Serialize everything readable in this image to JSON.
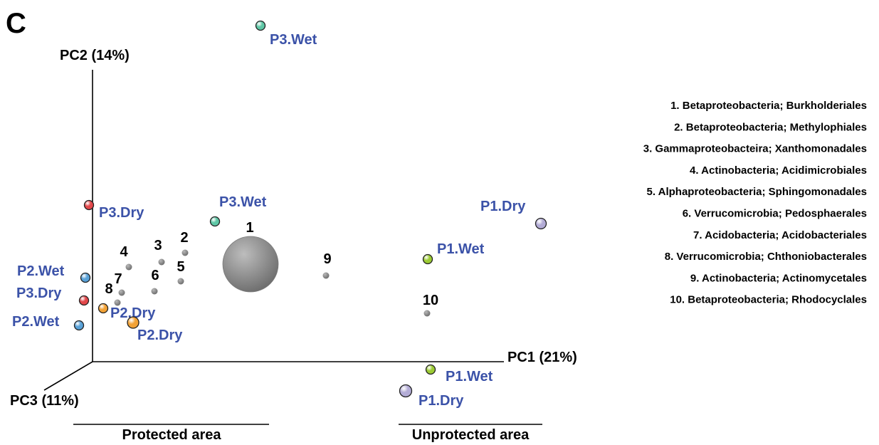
{
  "panel_letter": "C",
  "label_color": "#3b52a8",
  "chart_data": {
    "type": "scatter",
    "projection": "3d-pca-biplot",
    "axes": {
      "pc1": "PC1 (21%)",
      "pc2": "PC2 (14%)",
      "pc3": "PC3 (11%)"
    },
    "samples": [
      {
        "label": "P3.Wet",
        "color": "#5fc7a6",
        "group": "protected"
      },
      {
        "label": "P3.Wet",
        "color": "#5fc7a6",
        "group": "protected"
      },
      {
        "label": "P3.Dry",
        "color": "#e2474a",
        "group": "protected"
      },
      {
        "label": "P3.Dry",
        "color": "#e2474a",
        "group": "protected"
      },
      {
        "label": "P2.Wet",
        "color": "#5aa2d8",
        "group": "protected"
      },
      {
        "label": "P2.Wet",
        "color": "#5aa2d8",
        "group": "protected"
      },
      {
        "label": "P2.Dry",
        "color": "#f2a236",
        "group": "protected"
      },
      {
        "label": "P2.Dry",
        "color": "#f2a236",
        "group": "protected"
      },
      {
        "label": "P1.Dry",
        "color": "#b3acd6",
        "group": "unprotected"
      },
      {
        "label": "P1.Dry",
        "color": "#b3acd6",
        "group": "unprotected"
      },
      {
        "label": "P1.Wet",
        "color": "#9ccb34",
        "group": "unprotected"
      },
      {
        "label": "P1.Wet",
        "color": "#9ccb34",
        "group": "unprotected"
      }
    ],
    "taxa": [
      {
        "id": "1",
        "name": "Betaproteobacteria; Burkholderiales",
        "relative_size": "large"
      },
      {
        "id": "2",
        "name": "Betaproteobacteria; Methylophiales",
        "relative_size": "small"
      },
      {
        "id": "3",
        "name": "Gammaproteobacteira; Xanthomonadales",
        "relative_size": "small"
      },
      {
        "id": "4",
        "name": "Actinobacteria; Acidimicrobiales",
        "relative_size": "small"
      },
      {
        "id": "5",
        "name": "Alphaproteobacteria; Sphingomonadales",
        "relative_size": "small"
      },
      {
        "id": "6",
        "name": "Verrucomicrobia; Pedosphaerales",
        "relative_size": "small"
      },
      {
        "id": "7",
        "name": "Acidobacteria; Acidobacteriales",
        "relative_size": "small"
      },
      {
        "id": "8",
        "name": "Verrucomicrobia; Chthoniobacterales",
        "relative_size": "small"
      },
      {
        "id": "9",
        "name": "Actinobacteria; Actinomycetales",
        "relative_size": "small"
      },
      {
        "id": "10",
        "name": "Betaproteobacteria; Rhodocyclales",
        "relative_size": "small"
      }
    ],
    "legend": [
      "1. Betaproteobacteria; Burkholderiales",
      "2. Betaproteobacteria; Methylophiales",
      "3. Gammaproteobacteira; Xanthomonadales",
      "4. Actinobacteria; Acidimicrobiales",
      "5. Alphaproteobacteria; Sphingomonadales",
      "6. Verrucomicrobia; Pedosphaerales",
      "7. Acidobacteria; Acidobacteriales",
      "8. Verrucomicrobia; Chthoniobacterales",
      "9. Actinobacteria; Actinomycetales",
      "10. Betaproteobacteria; Rhodocyclales"
    ],
    "legend_placement": "right",
    "grid": false,
    "area_groups": [
      {
        "label": "Protected area"
      },
      {
        "label": "Unprotected area"
      }
    ]
  }
}
